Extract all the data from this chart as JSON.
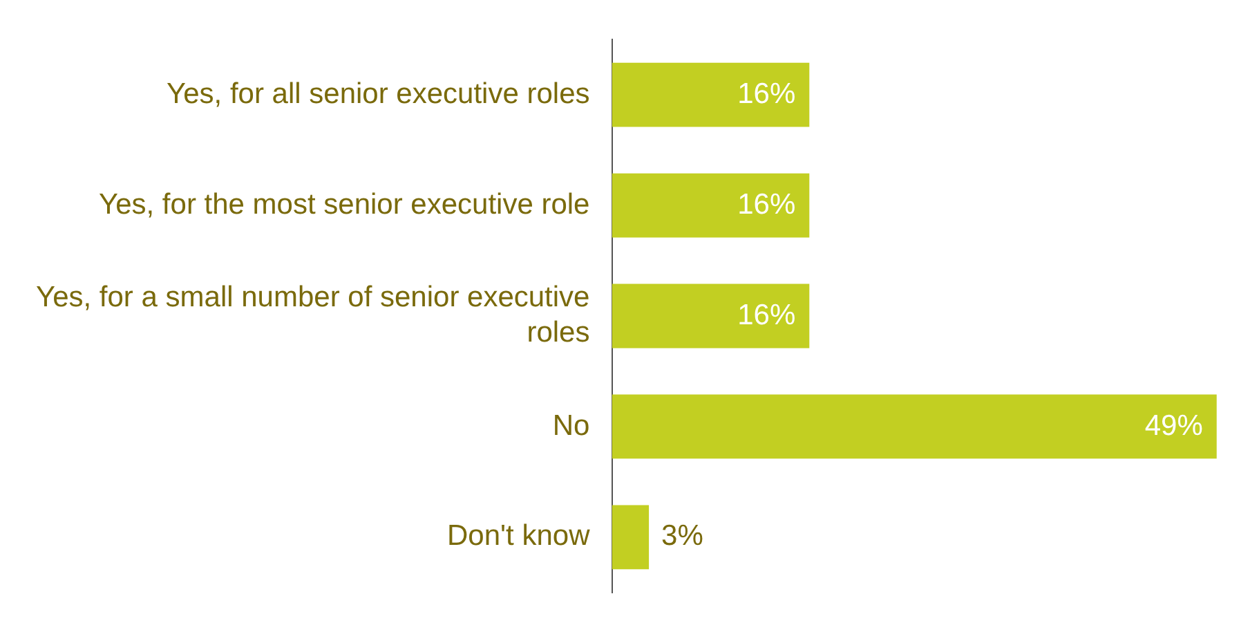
{
  "chart_data": {
    "type": "bar",
    "orientation": "horizontal",
    "categories": [
      "Yes, for all senior executive roles",
      "Yes, for the most senior executive role",
      "Yes, for a small number of senior executive roles",
      "No",
      "Don't know"
    ],
    "values": [
      16,
      16,
      16,
      49,
      3
    ],
    "value_labels": [
      "16%",
      "16%",
      "16%",
      "49%",
      "3%"
    ],
    "color": "#c2cf22"
  }
}
